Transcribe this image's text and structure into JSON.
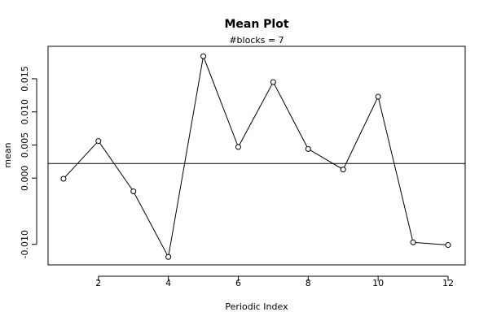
{
  "chart_data": {
    "type": "line",
    "title": "Mean Plot",
    "subtitle": "#blocks =  7",
    "x_label": "Periodic Index",
    "y_label": "mean",
    "x": [
      1,
      2,
      3,
      4,
      5,
      6,
      7,
      8,
      9,
      10,
      11,
      12
    ],
    "values": [
      -0.0001,
      0.0056,
      -0.002,
      -0.0119,
      0.0184,
      0.0047,
      0.0145,
      0.0044,
      0.0013,
      0.0123,
      -0.0097,
      -0.0101
    ],
    "color": "#000000",
    "hline": 0.0022,
    "xlim": [
      0.56,
      12.49
    ],
    "xticks": [
      2,
      4,
      6,
      8,
      10,
      12
    ],
    "ylim": [
      -0.0131,
      0.0199
    ],
    "yticks": [
      {
        "value": -0.01,
        "label": "-0.010"
      },
      {
        "value": 0,
        "label": "0.000"
      },
      0.005,
      {
        "value": 0.01,
        "label": "0.010"
      },
      0.015
    ]
  }
}
